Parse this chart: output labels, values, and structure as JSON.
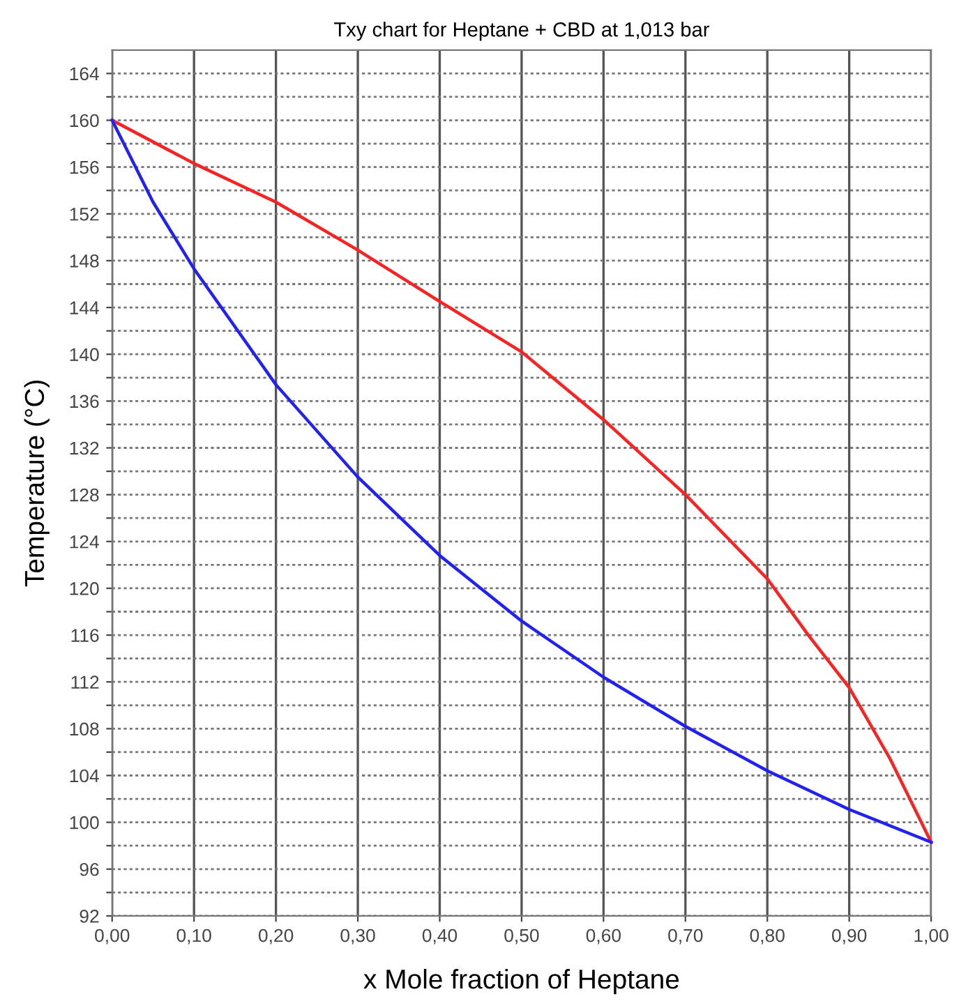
{
  "chart_data": {
    "type": "line",
    "title": "Txy chart for Heptane + CBD at 1,013 bar",
    "xlabel": "x Mole fraction of Heptane",
    "ylabel": "Temperature (°C)",
    "xlim": [
      0,
      1
    ],
    "ylim": [
      92,
      166
    ],
    "xticks": [
      {
        "value": 0,
        "label": "0,00"
      },
      {
        "value": 0.1,
        "label": "0,10"
      },
      {
        "value": 0.2,
        "label": "0,20"
      },
      {
        "value": 0.3,
        "label": "0,30"
      },
      {
        "value": 0.4,
        "label": "0,40"
      },
      {
        "value": 0.5,
        "label": "0,50"
      },
      {
        "value": 0.6,
        "label": "0,60"
      },
      {
        "value": 0.7,
        "label": "0,70"
      },
      {
        "value": 0.8,
        "label": "0,80"
      },
      {
        "value": 0.9,
        "label": "0,90"
      },
      {
        "value": 1,
        "label": "1,00"
      }
    ],
    "yticks": [
      92,
      {
        "value": 94,
        "label": null
      },
      96,
      {
        "value": 98,
        "label": null
      },
      100,
      {
        "value": 102,
        "label": null
      },
      104,
      {
        "value": 106,
        "label": null
      },
      108,
      {
        "value": 110,
        "label": null
      },
      112,
      {
        "value": 114,
        "label": null
      },
      116,
      {
        "value": 118,
        "label": null
      },
      120,
      {
        "value": 122,
        "label": null
      },
      124,
      {
        "value": 126,
        "label": null
      },
      128,
      {
        "value": 130,
        "label": null
      },
      132,
      {
        "value": 134,
        "label": null
      },
      136,
      {
        "value": 138,
        "label": null
      },
      140,
      {
        "value": 142,
        "label": null
      },
      144,
      {
        "value": 146,
        "label": null
      },
      148,
      {
        "value": 150,
        "label": null
      },
      152,
      {
        "value": 154,
        "label": null
      },
      156,
      {
        "value": 158,
        "label": null
      },
      160,
      {
        "value": 162,
        "label": null
      },
      164
    ],
    "grid": true,
    "marker": "none",
    "line_style": "solid",
    "series": [
      {
        "color": "#ff2020",
        "x": [
          0,
          0.1,
          0.2,
          0.3,
          0.4,
          0.5,
          0.6,
          0.7,
          0.8,
          0.85,
          0.9,
          0.95,
          1
        ],
        "values": [
          160,
          156.3,
          153,
          148.9,
          144.5,
          140.2,
          134.4,
          128,
          120.8,
          116,
          111.5,
          105.4,
          98.3
        ]
      },
      {
        "color": "#2020ff",
        "x": [
          0,
          0.05,
          0.1,
          0.2,
          0.3,
          0.4,
          0.5,
          0.6,
          0.7,
          0.8,
          0.9,
          1
        ],
        "values": [
          160,
          153,
          147.3,
          137.4,
          129.5,
          122.8,
          117.2,
          112.4,
          108.2,
          104.4,
          101.1,
          98.3
        ]
      }
    ]
  }
}
